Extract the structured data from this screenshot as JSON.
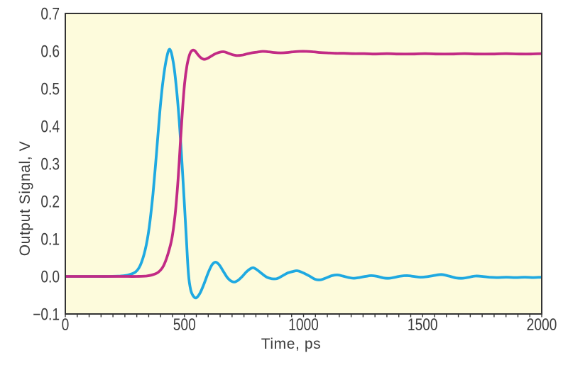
{
  "figure": {
    "background": "#ffffff"
  },
  "chart_data": {
    "type": "line",
    "title": "",
    "xlabel": "Time, ps",
    "ylabel": "Output Signal, V",
    "xlim": [
      0,
      2000
    ],
    "ylim": [
      -0.1,
      0.7
    ],
    "grid": false,
    "legend": false,
    "plot_background": "#FDFBDC",
    "axis_color": "#333333",
    "text_color": "#3C3C3C",
    "x_major_ticks": [
      0,
      500,
      1000,
      1500,
      2000
    ],
    "x_tick_labels": [
      "0",
      "500",
      "1000",
      "1500",
      "2000"
    ],
    "x_minor_tick_step": 50,
    "y_ticks": [
      -0.1,
      0.0,
      0.1,
      0.2,
      0.3,
      0.4,
      0.5,
      0.6,
      0.7
    ],
    "y_tick_labels": [
      "−0.1",
      "0.0",
      "0.1",
      "0.2",
      "0.3",
      "0.4",
      "0.5",
      "0.6",
      "0.7"
    ],
    "series": [
      {
        "name": "cyan-pulse-response",
        "color": "#1FA9E1",
        "line_width": 3.8,
        "points": [
          [
            0,
            0
          ],
          [
            60,
            0
          ],
          [
            120,
            0
          ],
          [
            180,
            0
          ],
          [
            230,
            0.001
          ],
          [
            265,
            0.004
          ],
          [
            295,
            0.012
          ],
          [
            315,
            0.03
          ],
          [
            335,
            0.07
          ],
          [
            352,
            0.13
          ],
          [
            368,
            0.22
          ],
          [
            383,
            0.33
          ],
          [
            397,
            0.44
          ],
          [
            410,
            0.52
          ],
          [
            424,
            0.578
          ],
          [
            438,
            0.605
          ],
          [
            452,
            0.575
          ],
          [
            465,
            0.51
          ],
          [
            478,
            0.415
          ],
          [
            490,
            0.3
          ],
          [
            500,
            0.19
          ],
          [
            509,
            0.09
          ],
          [
            517,
            0.005
          ],
          [
            526,
            -0.035
          ],
          [
            537,
            -0.052
          ],
          [
            550,
            -0.057
          ],
          [
            565,
            -0.045
          ],
          [
            581,
            -0.022
          ],
          [
            600,
            0.01
          ],
          [
            615,
            0.03
          ],
          [
            630,
            0.038
          ],
          [
            646,
            0.031
          ],
          [
            663,
            0.014
          ],
          [
            680,
            -0.003
          ],
          [
            695,
            -0.012
          ],
          [
            710,
            -0.015
          ],
          [
            726,
            -0.01
          ],
          [
            743,
            0
          ],
          [
            760,
            0.012
          ],
          [
            776,
            0.02
          ],
          [
            790,
            0.023
          ],
          [
            808,
            0.016
          ],
          [
            826,
            0.007
          ],
          [
            846,
            -0.002
          ],
          [
            866,
            -0.006
          ],
          [
            888,
            -0.006
          ],
          [
            910,
            0.001
          ],
          [
            933,
            0.009
          ],
          [
            955,
            0.013
          ],
          [
            975,
            0.015
          ],
          [
            1000,
            0.009
          ],
          [
            1025,
            0.001
          ],
          [
            1050,
            -0.008
          ],
          [
            1072,
            -0.009
          ],
          [
            1095,
            -0.004
          ],
          [
            1120,
            0.002
          ],
          [
            1142,
            0.004
          ],
          [
            1165,
            0.001
          ],
          [
            1190,
            -0.003
          ],
          [
            1212,
            -0.005
          ],
          [
            1235,
            -0.003
          ],
          [
            1260,
            0
          ],
          [
            1285,
            0.002
          ],
          [
            1310,
            0
          ],
          [
            1335,
            -0.004
          ],
          [
            1360,
            -0.005
          ],
          [
            1385,
            -0.002
          ],
          [
            1410,
            0.001
          ],
          [
            1435,
            0.002
          ],
          [
            1462,
            0
          ],
          [
            1490,
            -0.002
          ],
          [
            1515,
            -0.001
          ],
          [
            1545,
            0.002
          ],
          [
            1578,
            0.005
          ],
          [
            1610,
            0.001
          ],
          [
            1640,
            -0.004
          ],
          [
            1668,
            -0.005
          ],
          [
            1695,
            -0.002
          ],
          [
            1722,
            0.001
          ],
          [
            1750,
            0
          ],
          [
            1780,
            -0.002
          ],
          [
            1815,
            -0.003
          ],
          [
            1850,
            -0.002
          ],
          [
            1890,
            -0.003
          ],
          [
            1930,
            -0.002
          ],
          [
            1965,
            -0.003
          ],
          [
            2000,
            -0.002
          ]
        ]
      },
      {
        "name": "magenta-step-response",
        "color": "#C22B85",
        "line_width": 3.8,
        "points": [
          [
            0,
            0
          ],
          [
            80,
            0
          ],
          [
            160,
            0
          ],
          [
            240,
            0
          ],
          [
            300,
            0
          ],
          [
            340,
            0.001
          ],
          [
            370,
            0.005
          ],
          [
            392,
            0.012
          ],
          [
            412,
            0.028
          ],
          [
            430,
            0.058
          ],
          [
            447,
            0.1
          ],
          [
            461,
            0.165
          ],
          [
            473,
            0.255
          ],
          [
            483,
            0.355
          ],
          [
            492,
            0.445
          ],
          [
            501,
            0.515
          ],
          [
            511,
            0.562
          ],
          [
            521,
            0.589
          ],
          [
            531,
            0.601
          ],
          [
            543,
            0.601
          ],
          [
            556,
            0.591
          ],
          [
            569,
            0.582
          ],
          [
            583,
            0.578
          ],
          [
            598,
            0.581
          ],
          [
            614,
            0.587
          ],
          [
            631,
            0.593
          ],
          [
            649,
            0.597
          ],
          [
            667,
            0.598
          ],
          [
            685,
            0.594
          ],
          [
            703,
            0.59
          ],
          [
            721,
            0.588
          ],
          [
            741,
            0.589
          ],
          [
            761,
            0.592
          ],
          [
            782,
            0.595
          ],
          [
            804,
            0.597
          ],
          [
            828,
            0.599
          ],
          [
            853,
            0.598
          ],
          [
            878,
            0.596
          ],
          [
            904,
            0.595
          ],
          [
            930,
            0.596
          ],
          [
            957,
            0.598
          ],
          [
            984,
            0.599
          ],
          [
            1012,
            0.599
          ],
          [
            1041,
            0.598
          ],
          [
            1070,
            0.596
          ],
          [
            1100,
            0.595
          ],
          [
            1135,
            0.594
          ],
          [
            1170,
            0.594
          ],
          [
            1210,
            0.593
          ],
          [
            1255,
            0.593
          ],
          [
            1300,
            0.592
          ],
          [
            1350,
            0.593
          ],
          [
            1400,
            0.592
          ],
          [
            1455,
            0.592
          ],
          [
            1510,
            0.593
          ],
          [
            1565,
            0.592
          ],
          [
            1620,
            0.592
          ],
          [
            1675,
            0.593
          ],
          [
            1730,
            0.592
          ],
          [
            1790,
            0.592
          ],
          [
            1850,
            0.593
          ],
          [
            1910,
            0.592
          ],
          [
            1955,
            0.592
          ],
          [
            2000,
            0.593
          ]
        ]
      }
    ]
  }
}
